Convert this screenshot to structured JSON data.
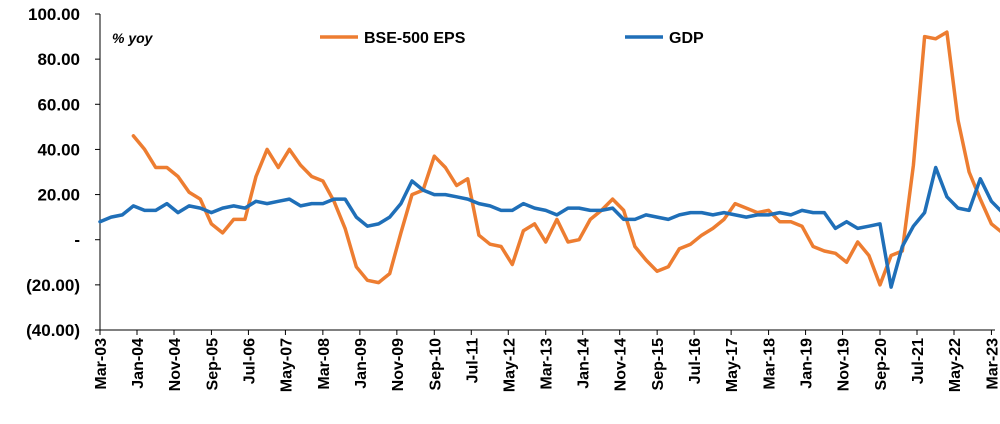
{
  "chart_data": {
    "type": "line",
    "unit_label": "% yoy",
    "ylim": [
      -40,
      100
    ],
    "yticks": [
      "100.00",
      "80.00",
      "60.00",
      "40.00",
      "20.00",
      "-",
      "(20.00)",
      "(40.00)"
    ],
    "ytick_values": [
      100,
      80,
      60,
      40,
      20,
      0,
      -20,
      -40
    ],
    "xlim": [
      2003.17,
      2023.25
    ],
    "xticks": [
      {
        "label": "Mar-03",
        "value": 2003.17
      },
      {
        "label": "Jan-04",
        "value": 2004.0
      },
      {
        "label": "Nov-04",
        "value": 2004.83
      },
      {
        "label": "Sep-05",
        "value": 2005.67
      },
      {
        "label": "Jul-06",
        "value": 2006.5
      },
      {
        "label": "May-07",
        "value": 2007.33
      },
      {
        "label": "Mar-08",
        "value": 2008.17
      },
      {
        "label": "Jan-09",
        "value": 2009.0
      },
      {
        "label": "Nov-09",
        "value": 2009.83
      },
      {
        "label": "Sep-10",
        "value": 2010.67
      },
      {
        "label": "Jul-11",
        "value": 2011.5
      },
      {
        "label": "May-12",
        "value": 2012.33
      },
      {
        "label": "Mar-13",
        "value": 2013.17
      },
      {
        "label": "Jan-14",
        "value": 2014.0
      },
      {
        "label": "Nov-14",
        "value": 2014.83
      },
      {
        "label": "Sep-15",
        "value": 2015.67
      },
      {
        "label": "Jul-16",
        "value": 2016.5
      },
      {
        "label": "May-17",
        "value": 2017.33
      },
      {
        "label": "Mar-18",
        "value": 2018.17
      },
      {
        "label": "Jan-19",
        "value": 2019.0
      },
      {
        "label": "Nov-19",
        "value": 2019.83
      },
      {
        "label": "Sep-20",
        "value": 2020.67
      },
      {
        "label": "Jul-21",
        "value": 2021.5
      },
      {
        "label": "May-22",
        "value": 2022.33
      },
      {
        "label": "Mar-23",
        "value": 2023.17
      }
    ],
    "legend_position": "top-center",
    "grid": false,
    "series": [
      {
        "name": "BSE-500 EPS",
        "color": "#ED7D31",
        "points": [
          [
            2003.92,
            46
          ],
          [
            2004.17,
            40
          ],
          [
            2004.42,
            32
          ],
          [
            2004.67,
            32
          ],
          [
            2004.92,
            28
          ],
          [
            2005.17,
            21
          ],
          [
            2005.42,
            18
          ],
          [
            2005.67,
            7
          ],
          [
            2005.92,
            3
          ],
          [
            2006.17,
            9
          ],
          [
            2006.42,
            9
          ],
          [
            2006.67,
            28
          ],
          [
            2006.92,
            40
          ],
          [
            2007.17,
            32
          ],
          [
            2007.42,
            40
          ],
          [
            2007.67,
            33
          ],
          [
            2007.92,
            28
          ],
          [
            2008.17,
            26
          ],
          [
            2008.42,
            17
          ],
          [
            2008.67,
            5
          ],
          [
            2008.92,
            -12
          ],
          [
            2009.17,
            -18
          ],
          [
            2009.42,
            -19
          ],
          [
            2009.67,
            -15
          ],
          [
            2009.92,
            3
          ],
          [
            2010.17,
            20
          ],
          [
            2010.42,
            22
          ],
          [
            2010.67,
            37
          ],
          [
            2010.92,
            32
          ],
          [
            2011.17,
            24
          ],
          [
            2011.42,
            27
          ],
          [
            2011.67,
            2
          ],
          [
            2011.92,
            -2
          ],
          [
            2012.17,
            -3
          ],
          [
            2012.42,
            -11
          ],
          [
            2012.67,
            4
          ],
          [
            2012.92,
            7
          ],
          [
            2013.17,
            -1
          ],
          [
            2013.42,
            9
          ],
          [
            2013.67,
            -1
          ],
          [
            2013.92,
            0
          ],
          [
            2014.17,
            9
          ],
          [
            2014.42,
            13
          ],
          [
            2014.67,
            18
          ],
          [
            2014.92,
            13
          ],
          [
            2015.17,
            -3
          ],
          [
            2015.42,
            -9
          ],
          [
            2015.67,
            -14
          ],
          [
            2015.92,
            -12
          ],
          [
            2016.17,
            -4
          ],
          [
            2016.42,
            -2
          ],
          [
            2016.67,
            2
          ],
          [
            2016.92,
            5
          ],
          [
            2017.17,
            9
          ],
          [
            2017.42,
            16
          ],
          [
            2017.67,
            14
          ],
          [
            2017.92,
            12
          ],
          [
            2018.17,
            13
          ],
          [
            2018.42,
            8
          ],
          [
            2018.67,
            8
          ],
          [
            2018.92,
            6
          ],
          [
            2019.17,
            -3
          ],
          [
            2019.42,
            -5
          ],
          [
            2019.67,
            -6
          ],
          [
            2019.92,
            -10
          ],
          [
            2020.17,
            -1
          ],
          [
            2020.42,
            -7
          ],
          [
            2020.67,
            -20
          ],
          [
            2020.92,
            -7
          ],
          [
            2021.17,
            -5
          ],
          [
            2021.42,
            33
          ],
          [
            2021.67,
            90
          ],
          [
            2021.92,
            89
          ],
          [
            2022.17,
            92
          ],
          [
            2022.42,
            53
          ],
          [
            2022.67,
            30
          ],
          [
            2022.92,
            18
          ],
          [
            2023.17,
            7
          ],
          [
            2023.42,
            3
          ],
          [
            2023.67,
            7
          ]
        ]
      },
      {
        "name": "GDP",
        "color": "#1F6FB8",
        "points": [
          [
            2003.17,
            8
          ],
          [
            2003.42,
            10
          ],
          [
            2003.67,
            11
          ],
          [
            2003.92,
            15
          ],
          [
            2004.17,
            13
          ],
          [
            2004.42,
            13
          ],
          [
            2004.67,
            16
          ],
          [
            2004.92,
            12
          ],
          [
            2005.17,
            15
          ],
          [
            2005.42,
            14
          ],
          [
            2005.67,
            12
          ],
          [
            2005.92,
            14
          ],
          [
            2006.17,
            15
          ],
          [
            2006.42,
            14
          ],
          [
            2006.67,
            17
          ],
          [
            2006.92,
            16
          ],
          [
            2007.17,
            17
          ],
          [
            2007.42,
            18
          ],
          [
            2007.67,
            15
          ],
          [
            2007.92,
            16
          ],
          [
            2008.17,
            16
          ],
          [
            2008.42,
            18
          ],
          [
            2008.67,
            18
          ],
          [
            2008.92,
            10
          ],
          [
            2009.17,
            6
          ],
          [
            2009.42,
            7
          ],
          [
            2009.67,
            10
          ],
          [
            2009.92,
            16
          ],
          [
            2010.17,
            26
          ],
          [
            2010.42,
            22
          ],
          [
            2010.67,
            20
          ],
          [
            2010.92,
            20
          ],
          [
            2011.17,
            19
          ],
          [
            2011.42,
            18
          ],
          [
            2011.67,
            16
          ],
          [
            2011.92,
            15
          ],
          [
            2012.17,
            13
          ],
          [
            2012.42,
            13
          ],
          [
            2012.67,
            16
          ],
          [
            2012.92,
            14
          ],
          [
            2013.17,
            13
          ],
          [
            2013.42,
            11
          ],
          [
            2013.67,
            14
          ],
          [
            2013.92,
            14
          ],
          [
            2014.17,
            13
          ],
          [
            2014.42,
            13
          ],
          [
            2014.67,
            14
          ],
          [
            2014.92,
            9
          ],
          [
            2015.17,
            9
          ],
          [
            2015.42,
            11
          ],
          [
            2015.67,
            10
          ],
          [
            2015.92,
            9
          ],
          [
            2016.17,
            11
          ],
          [
            2016.42,
            12
          ],
          [
            2016.67,
            12
          ],
          [
            2016.92,
            11
          ],
          [
            2017.17,
            12
          ],
          [
            2017.42,
            11
          ],
          [
            2017.67,
            10
          ],
          [
            2017.92,
            11
          ],
          [
            2018.17,
            11
          ],
          [
            2018.42,
            12
          ],
          [
            2018.67,
            11
          ],
          [
            2018.92,
            13
          ],
          [
            2019.17,
            12
          ],
          [
            2019.42,
            12
          ],
          [
            2019.67,
            5
          ],
          [
            2019.92,
            8
          ],
          [
            2020.17,
            5
          ],
          [
            2020.42,
            6
          ],
          [
            2020.67,
            7
          ],
          [
            2020.92,
            -21
          ],
          [
            2021.17,
            -3
          ],
          [
            2021.42,
            6
          ],
          [
            2021.67,
            12
          ],
          [
            2021.92,
            32
          ],
          [
            2022.17,
            19
          ],
          [
            2022.42,
            14
          ],
          [
            2022.67,
            13
          ],
          [
            2022.92,
            27
          ],
          [
            2023.17,
            17
          ],
          [
            2023.42,
            12
          ],
          [
            2023.67,
            8
          ]
        ]
      }
    ]
  }
}
